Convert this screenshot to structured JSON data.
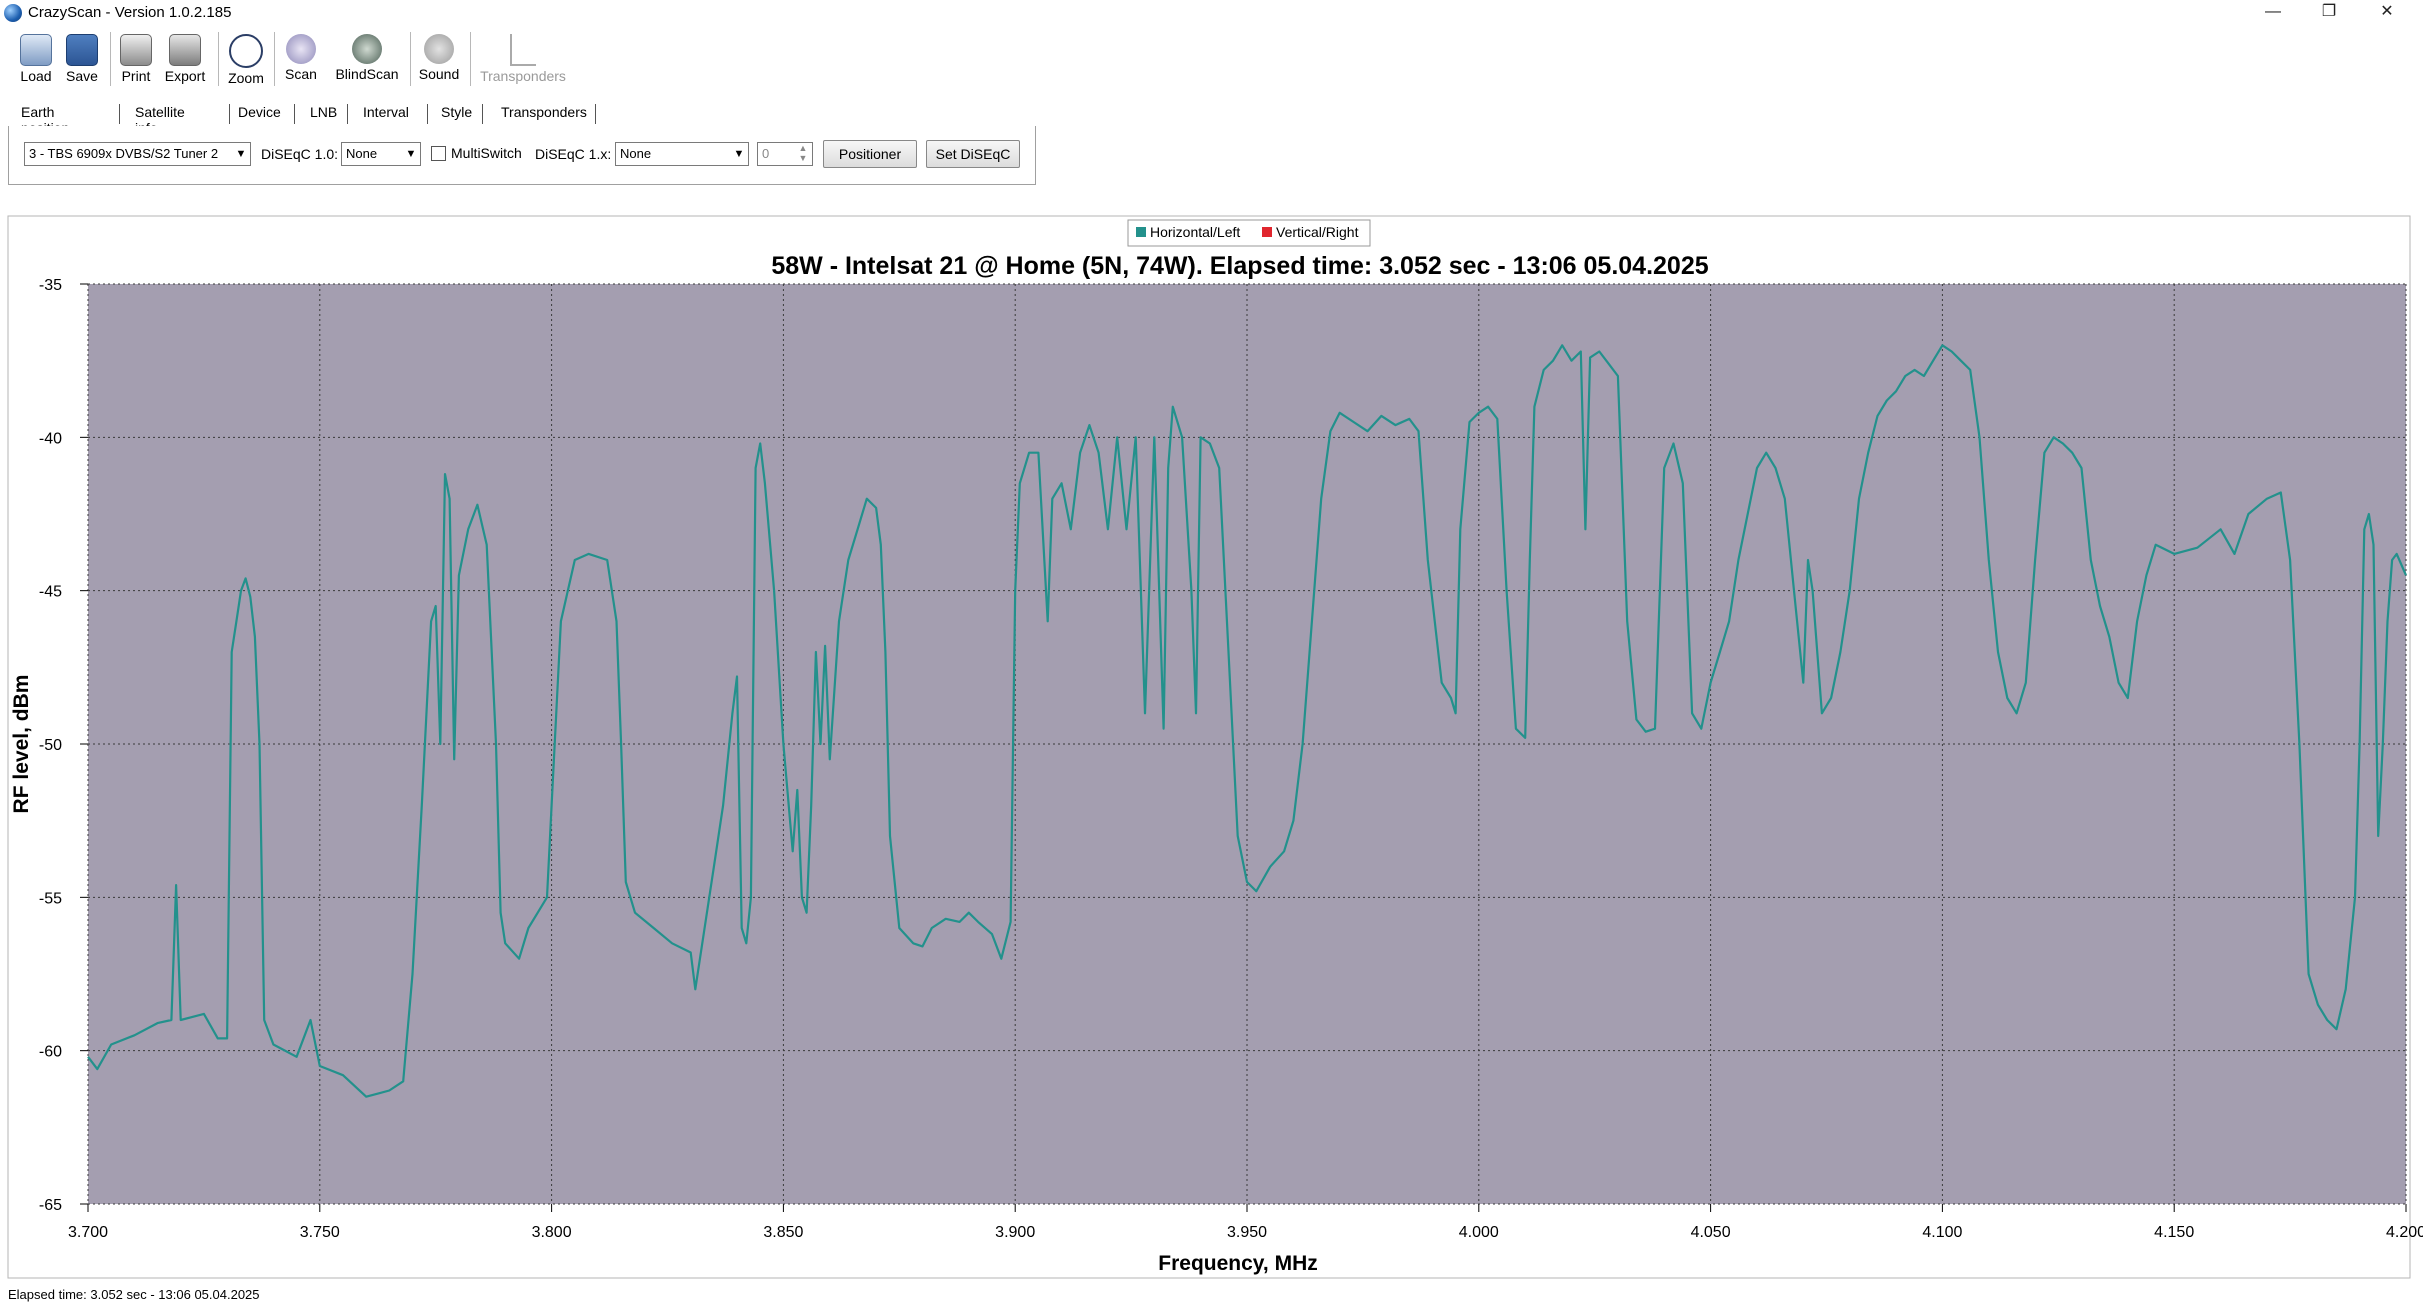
{
  "window": {
    "title": "CrazyScan - Version 1.0.2.185",
    "controls": [
      "—",
      "❐",
      "✕"
    ]
  },
  "toolbar": {
    "buttons": [
      {
        "label": "Load",
        "icon": "folder-icon",
        "enabled": true
      },
      {
        "label": "Save",
        "icon": "floppy-icon",
        "enabled": true
      },
      {
        "label": "Print",
        "icon": "printer-icon",
        "enabled": true
      },
      {
        "label": "Export",
        "icon": "export-icon",
        "enabled": true
      },
      {
        "label": "Zoom",
        "icon": "zoom-icon",
        "enabled": true
      },
      {
        "label": "Scan",
        "icon": "scan-icon",
        "enabled": true
      },
      {
        "label": "BlindScan",
        "icon": "blindscan-icon",
        "enabled": true
      },
      {
        "label": "Sound",
        "icon": "sound-icon",
        "enabled": true
      },
      {
        "label": "Transponders",
        "icon": "transponders-icon",
        "enabled": false
      }
    ]
  },
  "tabs": [
    "Earth position",
    "Satellite info",
    "Device",
    "LNB",
    "Interval",
    "Style",
    "Transponders"
  ],
  "device": {
    "tuner_value": "3 - TBS 6909x DVBS/S2 Tuner 2",
    "diseqc10_label": "DiSEqC 1.0:",
    "diseqc10_value": "None",
    "multiswitch_label": "MultiSwitch",
    "multiswitch_checked": false,
    "diseqc1x_label": "DiSEqC 1.x:",
    "diseqc1x_value": "None",
    "spin_value": "0",
    "positioner_label": "Positioner",
    "set_diseqc_label": "Set DiSEqC"
  },
  "chart_data": {
    "type": "line",
    "title": "58W - Intelsat 21 @ Home (5N, 74W). Elapsed time: 3.052 sec - 13:06 05.04.2025",
    "xlabel": "Frequency, MHz",
    "ylabel": "RF level, dBm",
    "xlim": [
      3.7,
      4.2
    ],
    "ylim": [
      -65,
      -35
    ],
    "xticks": [
      "3.700",
      "3.750",
      "3.800",
      "3.850",
      "3.900",
      "3.950",
      "4.000",
      "4.050",
      "4.100",
      "4.150",
      "4.200"
    ],
    "yticks": [
      "-35",
      "-40",
      "-45",
      "-50",
      "-55",
      "-60",
      "-65"
    ],
    "grid": true,
    "legend_position": "top-center",
    "legend": [
      {
        "name": "Horizontal/Left",
        "color": "#23918c"
      },
      {
        "name": "Vertical/Right",
        "color": "#e0262e"
      }
    ],
    "plot_background": "#a49eb0",
    "series": [
      {
        "name": "Horizontal/Left",
        "color": "#23918c",
        "points": [
          [
            3.7,
            -60.2
          ],
          [
            3.702,
            -60.6
          ],
          [
            3.705,
            -59.8
          ],
          [
            3.71,
            -59.5
          ],
          [
            3.715,
            -59.1
          ],
          [
            3.718,
            -59.0
          ],
          [
            3.719,
            -54.6
          ],
          [
            3.72,
            -59.0
          ],
          [
            3.725,
            -58.8
          ],
          [
            3.728,
            -59.6
          ],
          [
            3.73,
            -59.6
          ],
          [
            3.731,
            -47.0
          ],
          [
            3.732,
            -46.0
          ],
          [
            3.733,
            -45.0
          ],
          [
            3.734,
            -44.6
          ],
          [
            3.735,
            -45.2
          ],
          [
            3.736,
            -46.5
          ],
          [
            3.737,
            -50.0
          ],
          [
            3.738,
            -59.0
          ],
          [
            3.74,
            -59.8
          ],
          [
            3.745,
            -60.2
          ],
          [
            3.748,
            -59.0
          ],
          [
            3.75,
            -60.5
          ],
          [
            3.755,
            -60.8
          ],
          [
            3.76,
            -61.5
          ],
          [
            3.765,
            -61.3
          ],
          [
            3.768,
            -61.0
          ],
          [
            3.77,
            -57.5
          ],
          [
            3.772,
            -52.0
          ],
          [
            3.774,
            -46.0
          ],
          [
            3.775,
            -45.5
          ],
          [
            3.776,
            -50.0
          ],
          [
            3.777,
            -41.2
          ],
          [
            3.778,
            -42.0
          ],
          [
            3.779,
            -50.5
          ],
          [
            3.78,
            -44.5
          ],
          [
            3.782,
            -43.0
          ],
          [
            3.784,
            -42.2
          ],
          [
            3.786,
            -43.5
          ],
          [
            3.788,
            -50.0
          ],
          [
            3.789,
            -55.5
          ],
          [
            3.79,
            -56.5
          ],
          [
            3.793,
            -57.0
          ],
          [
            3.795,
            -56.0
          ],
          [
            3.797,
            -55.5
          ],
          [
            3.799,
            -55.0
          ],
          [
            3.8,
            -52.0
          ],
          [
            3.802,
            -46.0
          ],
          [
            3.805,
            -44.0
          ],
          [
            3.808,
            -43.8
          ],
          [
            3.812,
            -44.0
          ],
          [
            3.814,
            -46.0
          ],
          [
            3.815,
            -50.0
          ],
          [
            3.816,
            -54.5
          ],
          [
            3.818,
            -55.5
          ],
          [
            3.822,
            -56.0
          ],
          [
            3.826,
            -56.5
          ],
          [
            3.83,
            -56.8
          ],
          [
            3.831,
            -58.0
          ],
          [
            3.833,
            -56.0
          ],
          [
            3.835,
            -54.0
          ],
          [
            3.837,
            -52.0
          ],
          [
            3.839,
            -49.0
          ],
          [
            3.84,
            -47.8
          ],
          [
            3.841,
            -56.0
          ],
          [
            3.842,
            -56.5
          ],
          [
            3.843,
            -55.0
          ],
          [
            3.844,
            -41.0
          ],
          [
            3.845,
            -40.2
          ],
          [
            3.846,
            -41.5
          ],
          [
            3.848,
            -45.0
          ],
          [
            3.85,
            -50.0
          ],
          [
            3.852,
            -53.5
          ],
          [
            3.853,
            -51.5
          ],
          [
            3.854,
            -55.0
          ],
          [
            3.855,
            -55.5
          ],
          [
            3.856,
            -52.0
          ],
          [
            3.857,
            -47.0
          ],
          [
            3.858,
            -50.0
          ],
          [
            3.859,
            -46.8
          ],
          [
            3.86,
            -50.5
          ],
          [
            3.862,
            -46.0
          ],
          [
            3.864,
            -44.0
          ],
          [
            3.866,
            -43.0
          ],
          [
            3.868,
            -42.0
          ],
          [
            3.87,
            -42.3
          ],
          [
            3.871,
            -43.5
          ],
          [
            3.872,
            -47.0
          ],
          [
            3.873,
            -53.0
          ],
          [
            3.875,
            -56.0
          ],
          [
            3.878,
            -56.5
          ],
          [
            3.88,
            -56.6
          ],
          [
            3.882,
            -56.0
          ],
          [
            3.885,
            -55.7
          ],
          [
            3.888,
            -55.8
          ],
          [
            3.89,
            -55.5
          ],
          [
            3.892,
            -55.8
          ],
          [
            3.895,
            -56.2
          ],
          [
            3.897,
            -57.0
          ],
          [
            3.899,
            -55.8
          ],
          [
            3.9,
            -45.0
          ],
          [
            3.901,
            -41.5
          ],
          [
            3.903,
            -40.5
          ],
          [
            3.905,
            -40.5
          ],
          [
            3.907,
            -46.0
          ],
          [
            3.908,
            -42.0
          ],
          [
            3.91,
            -41.5
          ],
          [
            3.912,
            -43.0
          ],
          [
            3.914,
            -40.5
          ],
          [
            3.916,
            -39.6
          ],
          [
            3.918,
            -40.5
          ],
          [
            3.92,
            -43.0
          ],
          [
            3.922,
            -40.0
          ],
          [
            3.924,
            -43.0
          ],
          [
            3.926,
            -40.0
          ],
          [
            3.928,
            -49.0
          ],
          [
            3.93,
            -40.0
          ],
          [
            3.932,
            -49.5
          ],
          [
            3.933,
            -41.0
          ],
          [
            3.934,
            -39.0
          ],
          [
            3.936,
            -40.0
          ],
          [
            3.938,
            -45.0
          ],
          [
            3.939,
            -49.0
          ],
          [
            3.94,
            -40.0
          ],
          [
            3.942,
            -40.2
          ],
          [
            3.944,
            -41.0
          ],
          [
            3.946,
            -47.0
          ],
          [
            3.948,
            -53.0
          ],
          [
            3.95,
            -54.5
          ],
          [
            3.952,
            -54.8
          ],
          [
            3.955,
            -54.0
          ],
          [
            3.958,
            -53.5
          ],
          [
            3.96,
            -52.5
          ],
          [
            3.962,
            -50.0
          ],
          [
            3.964,
            -46.0
          ],
          [
            3.966,
            -42.0
          ],
          [
            3.968,
            -39.8
          ],
          [
            3.97,
            -39.2
          ],
          [
            3.973,
            -39.5
          ],
          [
            3.976,
            -39.8
          ],
          [
            3.979,
            -39.3
          ],
          [
            3.982,
            -39.6
          ],
          [
            3.985,
            -39.4
          ],
          [
            3.987,
            -39.8
          ],
          [
            3.989,
            -44.0
          ],
          [
            3.992,
            -48.0
          ],
          [
            3.994,
            -48.5
          ],
          [
            3.995,
            -49.0
          ],
          [
            3.996,
            -43.0
          ],
          [
            3.998,
            -39.5
          ],
          [
            4.0,
            -39.2
          ],
          [
            4.002,
            -39.0
          ],
          [
            4.004,
            -39.4
          ],
          [
            4.006,
            -45.0
          ],
          [
            4.008,
            -49.5
          ],
          [
            4.01,
            -49.8
          ],
          [
            4.011,
            -44.0
          ],
          [
            4.012,
            -39.0
          ],
          [
            4.014,
            -37.8
          ],
          [
            4.016,
            -37.5
          ],
          [
            4.018,
            -37.0
          ],
          [
            4.02,
            -37.5
          ],
          [
            4.022,
            -37.2
          ],
          [
            4.023,
            -43.0
          ],
          [
            4.024,
            -37.4
          ],
          [
            4.026,
            -37.2
          ],
          [
            4.028,
            -37.6
          ],
          [
            4.03,
            -38.0
          ],
          [
            4.032,
            -46.0
          ],
          [
            4.034,
            -49.2
          ],
          [
            4.036,
            -49.6
          ],
          [
            4.038,
            -49.5
          ],
          [
            4.04,
            -41.0
          ],
          [
            4.042,
            -40.2
          ],
          [
            4.044,
            -41.5
          ],
          [
            4.046,
            -49.0
          ],
          [
            4.048,
            -49.5
          ],
          [
            4.05,
            -48.0
          ],
          [
            4.052,
            -47.0
          ],
          [
            4.054,
            -46.0
          ],
          [
            4.056,
            -44.0
          ],
          [
            4.058,
            -42.5
          ],
          [
            4.06,
            -41.0
          ],
          [
            4.062,
            -40.5
          ],
          [
            4.064,
            -41.0
          ],
          [
            4.066,
            -42.0
          ],
          [
            4.068,
            -45.0
          ],
          [
            4.07,
            -48.0
          ],
          [
            4.071,
            -44.0
          ],
          [
            4.072,
            -45.0
          ],
          [
            4.074,
            -49.0
          ],
          [
            4.076,
            -48.5
          ],
          [
            4.078,
            -47.0
          ],
          [
            4.08,
            -45.0
          ],
          [
            4.082,
            -42.0
          ],
          [
            4.084,
            -40.5
          ],
          [
            4.086,
            -39.3
          ],
          [
            4.088,
            -38.8
          ],
          [
            4.09,
            -38.5
          ],
          [
            4.092,
            -38.0
          ],
          [
            4.094,
            -37.8
          ],
          [
            4.096,
            -38.0
          ],
          [
            4.098,
            -37.5
          ],
          [
            4.1,
            -37.0
          ],
          [
            4.102,
            -37.2
          ],
          [
            4.104,
            -37.5
          ],
          [
            4.106,
            -37.8
          ],
          [
            4.108,
            -40.0
          ],
          [
            4.11,
            -44.0
          ],
          [
            4.112,
            -47.0
          ],
          [
            4.114,
            -48.5
          ],
          [
            4.116,
            -49.0
          ],
          [
            4.118,
            -48.0
          ],
          [
            4.12,
            -44.0
          ],
          [
            4.122,
            -40.5
          ],
          [
            4.124,
            -40.0
          ],
          [
            4.126,
            -40.2
          ],
          [
            4.128,
            -40.5
          ],
          [
            4.13,
            -41.0
          ],
          [
            4.132,
            -44.0
          ],
          [
            4.134,
            -45.5
          ],
          [
            4.136,
            -46.5
          ],
          [
            4.138,
            -48.0
          ],
          [
            4.14,
            -48.5
          ],
          [
            4.142,
            -46.0
          ],
          [
            4.144,
            -44.5
          ],
          [
            4.146,
            -43.5
          ],
          [
            4.15,
            -43.8
          ],
          [
            4.155,
            -43.6
          ],
          [
            4.16,
            -43.0
          ],
          [
            4.163,
            -43.8
          ],
          [
            4.166,
            -42.5
          ],
          [
            4.17,
            -42.0
          ],
          [
            4.173,
            -41.8
          ],
          [
            4.175,
            -44.0
          ],
          [
            4.177,
            -50.0
          ],
          [
            4.179,
            -57.5
          ],
          [
            4.181,
            -58.5
          ],
          [
            4.183,
            -59.0
          ],
          [
            4.185,
            -59.3
          ],
          [
            4.187,
            -58.0
          ],
          [
            4.189,
            -55.0
          ],
          [
            4.19,
            -50.0
          ],
          [
            4.191,
            -43.0
          ],
          [
            4.192,
            -42.5
          ],
          [
            4.193,
            -43.5
          ],
          [
            4.194,
            -53.0
          ],
          [
            4.195,
            -50.0
          ],
          [
            4.196,
            -46.0
          ],
          [
            4.197,
            -44.0
          ],
          [
            4.198,
            -43.8
          ],
          [
            4.2,
            -44.5
          ]
        ]
      }
    ]
  },
  "status": {
    "text": "Elapsed time: 3.052 sec - 13:06 05.04.2025"
  },
  "colors": {
    "accent": "#23918c",
    "plot_background": "#a49eb0",
    "secondary": "#e0262e"
  }
}
